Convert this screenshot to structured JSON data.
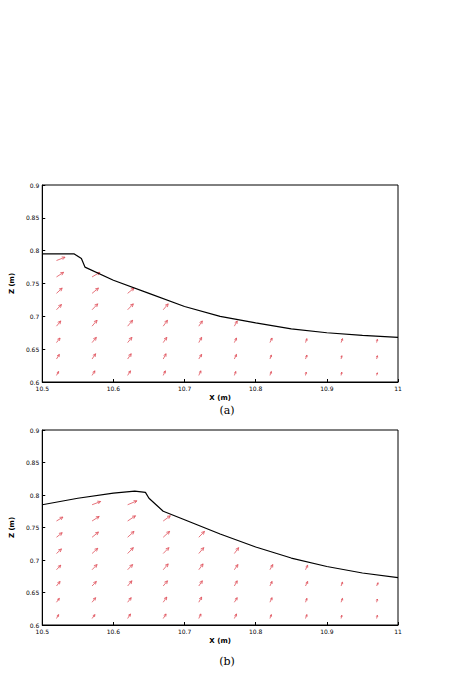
{
  "chart_data": [
    {
      "type": "quiver",
      "caption": "(a)",
      "x_label": "X (m)",
      "y_label": "Z (m)",
      "xlim": [
        10.5,
        11
      ],
      "ylim": [
        0.6,
        0.9
      ],
      "xticks": [
        10.5,
        10.6,
        10.7,
        10.8,
        10.9,
        11
      ],
      "yticks": [
        0.6,
        0.65,
        0.7,
        0.75,
        0.8,
        0.85,
        0.9
      ],
      "surface": {
        "color": "#000000",
        "x": [
          10.5,
          10.545,
          10.555,
          10.56,
          10.6,
          10.65,
          10.7,
          10.75,
          10.8,
          10.85,
          10.9,
          10.95,
          11
        ],
        "z": [
          0.795,
          0.795,
          0.788,
          0.775,
          0.755,
          0.735,
          0.715,
          0.7,
          0.69,
          0.681,
          0.675,
          0.671,
          0.668
        ]
      },
      "vectors": {
        "color": "#e0505a",
        "points": [
          [
            10.52,
            0.61,
            0.003,
            0.006
          ],
          [
            10.52,
            0.635,
            0.004,
            0.007
          ],
          [
            10.52,
            0.66,
            0.005,
            0.007
          ],
          [
            10.52,
            0.685,
            0.006,
            0.008
          ],
          [
            10.52,
            0.71,
            0.007,
            0.008
          ],
          [
            10.52,
            0.735,
            0.008,
            0.008
          ],
          [
            10.52,
            0.76,
            0.01,
            0.007
          ],
          [
            10.52,
            0.785,
            0.012,
            0.005
          ],
          [
            10.57,
            0.61,
            0.004,
            0.007
          ],
          [
            10.57,
            0.635,
            0.005,
            0.008
          ],
          [
            10.57,
            0.66,
            0.006,
            0.008
          ],
          [
            10.57,
            0.685,
            0.007,
            0.009
          ],
          [
            10.57,
            0.71,
            0.008,
            0.009
          ],
          [
            10.57,
            0.735,
            0.009,
            0.008
          ],
          [
            10.57,
            0.76,
            0.011,
            0.007
          ],
          [
            10.62,
            0.61,
            0.004,
            0.007
          ],
          [
            10.62,
            0.635,
            0.005,
            0.008
          ],
          [
            10.62,
            0.66,
            0.006,
            0.008
          ],
          [
            10.62,
            0.685,
            0.007,
            0.009
          ],
          [
            10.62,
            0.71,
            0.008,
            0.009
          ],
          [
            10.62,
            0.735,
            0.009,
            0.008
          ],
          [
            10.67,
            0.61,
            0.003,
            0.007
          ],
          [
            10.67,
            0.635,
            0.004,
            0.008
          ],
          [
            10.67,
            0.66,
            0.005,
            0.008
          ],
          [
            10.67,
            0.685,
            0.006,
            0.009
          ],
          [
            10.67,
            0.71,
            0.007,
            0.009
          ],
          [
            10.72,
            0.61,
            0.003,
            0.007
          ],
          [
            10.72,
            0.635,
            0.004,
            0.007
          ],
          [
            10.72,
            0.66,
            0.004,
            0.008
          ],
          [
            10.72,
            0.685,
            0.005,
            0.008
          ],
          [
            10.77,
            0.61,
            0.002,
            0.006
          ],
          [
            10.77,
            0.635,
            0.003,
            0.007
          ],
          [
            10.77,
            0.66,
            0.003,
            0.007
          ],
          [
            10.77,
            0.685,
            0.004,
            0.008
          ],
          [
            10.82,
            0.61,
            0.002,
            0.006
          ],
          [
            10.82,
            0.635,
            0.002,
            0.006
          ],
          [
            10.82,
            0.66,
            0.003,
            0.007
          ],
          [
            10.87,
            0.61,
            0.001,
            0.005
          ],
          [
            10.87,
            0.635,
            0.002,
            0.006
          ],
          [
            10.87,
            0.66,
            0.002,
            0.006
          ],
          [
            10.92,
            0.61,
            0.001,
            0.005
          ],
          [
            10.92,
            0.635,
            0.001,
            0.005
          ],
          [
            10.92,
            0.66,
            0.002,
            0.006
          ],
          [
            10.97,
            0.61,
            0.001,
            0.004
          ],
          [
            10.97,
            0.635,
            0.001,
            0.005
          ],
          [
            10.97,
            0.66,
            0.001,
            0.005
          ]
        ]
      }
    },
    {
      "type": "quiver",
      "caption": "(b)",
      "x_label": "X (m)",
      "y_label": "Z (m)",
      "xlim": [
        10.5,
        11
      ],
      "ylim": [
        0.6,
        0.9
      ],
      "xticks": [
        10.5,
        10.6,
        10.7,
        10.8,
        10.9,
        11
      ],
      "yticks": [
        0.6,
        0.65,
        0.7,
        0.75,
        0.8,
        0.85,
        0.9
      ],
      "surface": {
        "color": "#000000",
        "x": [
          10.5,
          10.55,
          10.6,
          10.63,
          10.645,
          10.65,
          10.66,
          10.67,
          10.7,
          10.75,
          10.8,
          10.85,
          10.9,
          10.95,
          11
        ],
        "z": [
          0.785,
          0.795,
          0.803,
          0.806,
          0.804,
          0.795,
          0.785,
          0.775,
          0.762,
          0.74,
          0.72,
          0.703,
          0.69,
          0.68,
          0.673
        ]
      },
      "vectors": {
        "color": "#e0505a",
        "points": [
          [
            10.52,
            0.61,
            0.003,
            0.006
          ],
          [
            10.52,
            0.635,
            0.004,
            0.006
          ],
          [
            10.52,
            0.66,
            0.005,
            0.007
          ],
          [
            10.52,
            0.685,
            0.006,
            0.007
          ],
          [
            10.52,
            0.71,
            0.007,
            0.007
          ],
          [
            10.52,
            0.735,
            0.008,
            0.007
          ],
          [
            10.52,
            0.76,
            0.009,
            0.006
          ],
          [
            10.57,
            0.61,
            0.004,
            0.006
          ],
          [
            10.57,
            0.635,
            0.005,
            0.007
          ],
          [
            10.57,
            0.66,
            0.006,
            0.007
          ],
          [
            10.57,
            0.685,
            0.007,
            0.008
          ],
          [
            10.57,
            0.71,
            0.008,
            0.008
          ],
          [
            10.57,
            0.735,
            0.009,
            0.008
          ],
          [
            10.57,
            0.76,
            0.01,
            0.007
          ],
          [
            10.57,
            0.785,
            0.012,
            0.005
          ],
          [
            10.62,
            0.61,
            0.004,
            0.007
          ],
          [
            10.62,
            0.635,
            0.005,
            0.007
          ],
          [
            10.62,
            0.66,
            0.006,
            0.008
          ],
          [
            10.62,
            0.685,
            0.007,
            0.008
          ],
          [
            10.62,
            0.71,
            0.008,
            0.009
          ],
          [
            10.62,
            0.735,
            0.009,
            0.009
          ],
          [
            10.62,
            0.76,
            0.011,
            0.008
          ],
          [
            10.62,
            0.785,
            0.013,
            0.006
          ],
          [
            10.67,
            0.61,
            0.004,
            0.007
          ],
          [
            10.67,
            0.635,
            0.005,
            0.008
          ],
          [
            10.67,
            0.66,
            0.006,
            0.008
          ],
          [
            10.67,
            0.685,
            0.007,
            0.009
          ],
          [
            10.67,
            0.71,
            0.008,
            0.009
          ],
          [
            10.67,
            0.735,
            0.009,
            0.009
          ],
          [
            10.67,
            0.76,
            0.01,
            0.008
          ],
          [
            10.72,
            0.61,
            0.003,
            0.007
          ],
          [
            10.72,
            0.635,
            0.004,
            0.008
          ],
          [
            10.72,
            0.66,
            0.005,
            0.008
          ],
          [
            10.72,
            0.685,
            0.006,
            0.009
          ],
          [
            10.72,
            0.71,
            0.007,
            0.009
          ],
          [
            10.72,
            0.735,
            0.008,
            0.009
          ],
          [
            10.77,
            0.61,
            0.003,
            0.007
          ],
          [
            10.77,
            0.635,
            0.004,
            0.007
          ],
          [
            10.77,
            0.66,
            0.004,
            0.008
          ],
          [
            10.77,
            0.685,
            0.005,
            0.008
          ],
          [
            10.77,
            0.71,
            0.006,
            0.009
          ],
          [
            10.82,
            0.61,
            0.002,
            0.006
          ],
          [
            10.82,
            0.635,
            0.003,
            0.007
          ],
          [
            10.82,
            0.66,
            0.003,
            0.007
          ],
          [
            10.82,
            0.685,
            0.004,
            0.008
          ],
          [
            10.87,
            0.61,
            0.002,
            0.006
          ],
          [
            10.87,
            0.635,
            0.002,
            0.006
          ],
          [
            10.87,
            0.66,
            0.003,
            0.007
          ],
          [
            10.87,
            0.685,
            0.003,
            0.007
          ],
          [
            10.92,
            0.61,
            0.001,
            0.005
          ],
          [
            10.92,
            0.635,
            0.002,
            0.006
          ],
          [
            10.92,
            0.66,
            0.002,
            0.006
          ],
          [
            10.97,
            0.61,
            0.001,
            0.005
          ],
          [
            10.97,
            0.635,
            0.001,
            0.005
          ],
          [
            10.97,
            0.66,
            0.002,
            0.005
          ]
        ]
      }
    }
  ]
}
